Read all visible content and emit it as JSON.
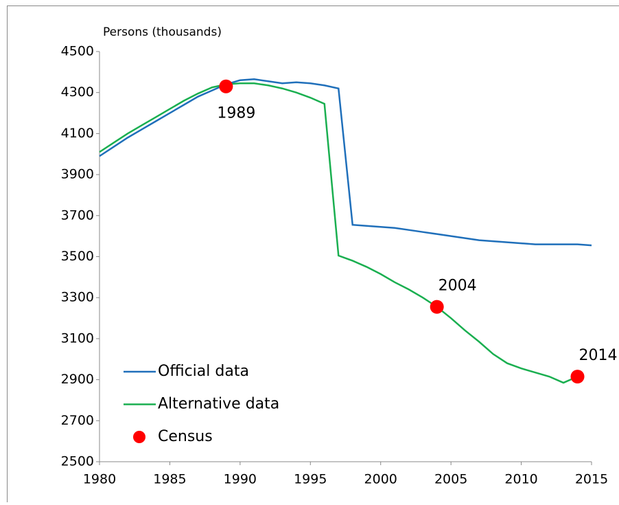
{
  "chart_data": {
    "type": "line",
    "y_label": "Persons (thousands)",
    "x": [
      1980,
      1981,
      1982,
      1983,
      1984,
      1985,
      1986,
      1987,
      1988,
      1989,
      1990,
      1991,
      1992,
      1993,
      1994,
      1995,
      1996,
      1997,
      1998,
      1999,
      2000,
      2001,
      2002,
      2003,
      2004,
      2005,
      2006,
      2007,
      2008,
      2009,
      2010,
      2011,
      2012,
      2013,
      2014,
      2015
    ],
    "series": [
      {
        "name": "Official data",
        "color": "#1f6fba",
        "values": [
          3990,
          4035,
          4080,
          4120,
          4160,
          4200,
          4240,
          4280,
          4310,
          4340,
          4360,
          4365,
          4355,
          4345,
          4350,
          4345,
          4335,
          4320,
          3655,
          3650,
          3645,
          3640,
          3630,
          3620,
          3610,
          3600,
          3590,
          3580,
          3575,
          3570,
          3565,
          3560,
          3560,
          3560,
          3560,
          3555
        ]
      },
      {
        "name": "Alternative data",
        "color": "#1aaf50",
        "values": [
          4010,
          4055,
          4100,
          4140,
          4180,
          4220,
          4260,
          4295,
          4325,
          4340,
          4345,
          4345,
          4335,
          4320,
          4300,
          4275,
          4245,
          3505,
          3480,
          3450,
          3415,
          3375,
          3340,
          3300,
          3255,
          3200,
          3140,
          3085,
          3025,
          2980,
          2955,
          2935,
          2915,
          2885,
          2915,
          null
        ]
      },
      {
        "name": "Census",
        "color": "#ff0000",
        "type": "scatter",
        "x": [
          1989,
          2004,
          2014
        ],
        "values": [
          4330,
          3255,
          2915
        ]
      }
    ],
    "xlim": [
      1980,
      2015
    ],
    "xticks": [
      1980,
      1985,
      1990,
      1995,
      2000,
      2005,
      2010,
      2015
    ],
    "ylim": [
      2500,
      4500
    ],
    "yticks": [
      2500,
      2700,
      2900,
      3100,
      3300,
      3500,
      3700,
      3900,
      4100,
      4300,
      4500
    ],
    "grid": false,
    "legend": "bottom-left"
  }
}
